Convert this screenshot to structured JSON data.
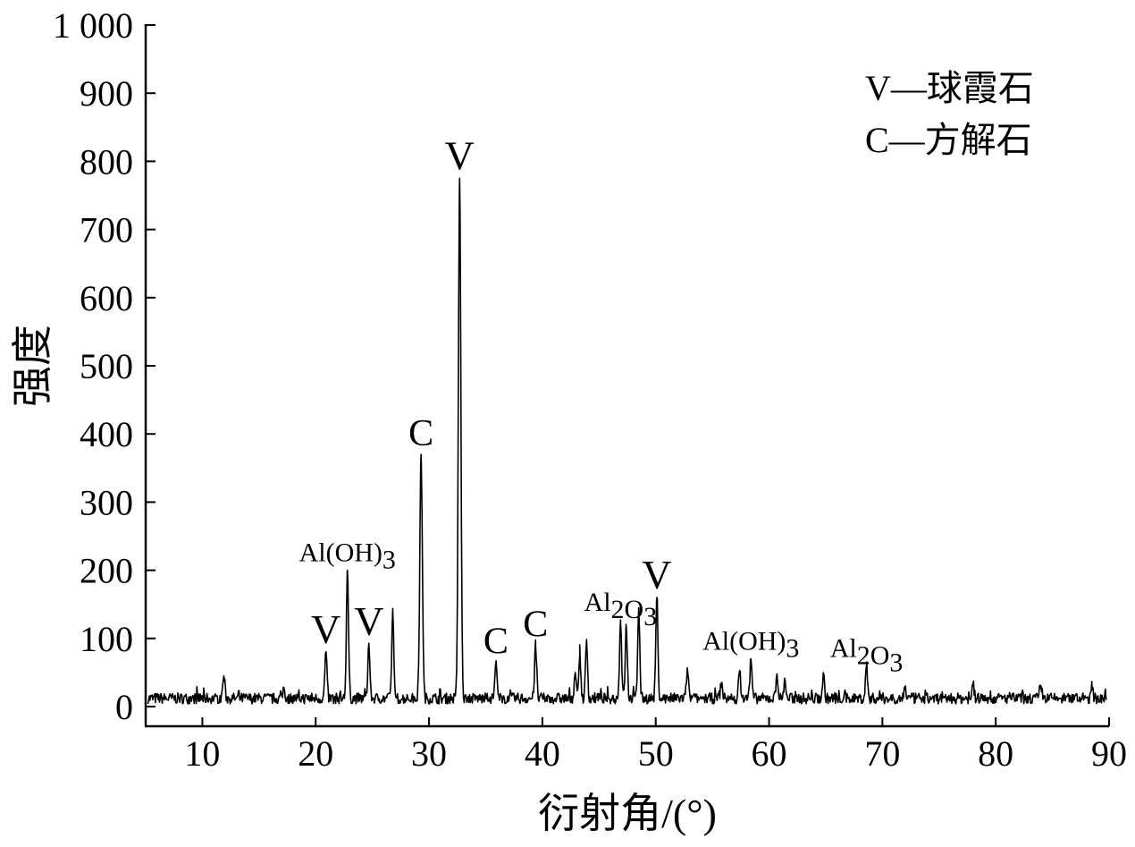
{
  "chart_data": {
    "type": "line",
    "xlabel": "衍射角/(°)",
    "ylabel": "强度",
    "xlim": [
      5,
      90
    ],
    "ylim": [
      0,
      1000
    ],
    "x_ticks": [
      10,
      20,
      30,
      40,
      50,
      60,
      70,
      80,
      90
    ],
    "x_tick_labels": [
      "10",
      "20",
      "30",
      "40",
      "50",
      "60",
      "70",
      "80",
      "90"
    ],
    "y_ticks": [
      0,
      100,
      200,
      300,
      400,
      500,
      600,
      700,
      800,
      900,
      1000
    ],
    "y_tick_labels": [
      "0",
      "100",
      "200",
      "300",
      "400",
      "500",
      "600",
      "700",
      "800",
      "900",
      "1 000"
    ],
    "grid": false,
    "legend_position": "top-right",
    "legend": [
      {
        "symbol": "V",
        "text": "V—球霞石"
      },
      {
        "symbol": "C",
        "text": "C—方解石"
      }
    ],
    "baseline": 12,
    "peaks": [
      {
        "x": 11.9,
        "y": 45
      },
      {
        "x": 17.2,
        "y": 28
      },
      {
        "x": 20.9,
        "y": 80
      },
      {
        "x": 22.8,
        "y": 200
      },
      {
        "x": 24.7,
        "y": 92
      },
      {
        "x": 26.8,
        "y": 140
      },
      {
        "x": 29.3,
        "y": 370
      },
      {
        "x": 32.7,
        "y": 775
      },
      {
        "x": 35.9,
        "y": 65
      },
      {
        "x": 39.4,
        "y": 90
      },
      {
        "x": 42.9,
        "y": 50
      },
      {
        "x": 43.3,
        "y": 75
      },
      {
        "x": 43.9,
        "y": 95
      },
      {
        "x": 46.9,
        "y": 127
      },
      {
        "x": 47.4,
        "y": 118
      },
      {
        "x": 48.5,
        "y": 145
      },
      {
        "x": 50.1,
        "y": 160
      },
      {
        "x": 52.8,
        "y": 55
      },
      {
        "x": 55.8,
        "y": 35
      },
      {
        "x": 57.4,
        "y": 52
      },
      {
        "x": 58.4,
        "y": 70
      },
      {
        "x": 60.7,
        "y": 48
      },
      {
        "x": 61.4,
        "y": 40
      },
      {
        "x": 64.8,
        "y": 45
      },
      {
        "x": 68.6,
        "y": 60
      },
      {
        "x": 72.0,
        "y": 30
      },
      {
        "x": 78.0,
        "y": 32
      },
      {
        "x": 84.0,
        "y": 30
      },
      {
        "x": 88.5,
        "y": 25
      }
    ],
    "annotations": [
      {
        "kind": "v",
        "x": 20.9,
        "y": 80,
        "text": "V"
      },
      {
        "kind": "chem",
        "x": 22.8,
        "y": 200,
        "parts": [
          {
            "t": "Al(OH)"
          },
          {
            "t": "3",
            "sub": true
          }
        ]
      },
      {
        "kind": "v",
        "x": 24.7,
        "y": 92,
        "text": "V"
      },
      {
        "kind": "c",
        "x": 29.3,
        "y": 370,
        "text": "C"
      },
      {
        "kind": "v",
        "x": 32.7,
        "y": 775,
        "text": "V"
      },
      {
        "kind": "c",
        "x": 35.9,
        "y": 65,
        "text": "C"
      },
      {
        "kind": "c",
        "x": 39.4,
        "y": 90,
        "text": "C"
      },
      {
        "kind": "chem",
        "x": 46.9,
        "y": 127,
        "parts": [
          {
            "t": "Al"
          },
          {
            "t": "2",
            "sub": true
          },
          {
            "t": "O"
          },
          {
            "t": "3",
            "sub": true
          }
        ]
      },
      {
        "kind": "v",
        "x": 50.1,
        "y": 160,
        "text": "V"
      },
      {
        "kind": "chem",
        "x": 58.4,
        "y": 70,
        "parts": [
          {
            "t": "Al(OH)"
          },
          {
            "t": "3",
            "sub": true
          }
        ]
      },
      {
        "kind": "chem",
        "x": 68.6,
        "y": 60,
        "parts": [
          {
            "t": "Al"
          },
          {
            "t": "2",
            "sub": true
          },
          {
            "t": "O"
          },
          {
            "t": "3",
            "sub": true
          }
        ]
      }
    ]
  }
}
